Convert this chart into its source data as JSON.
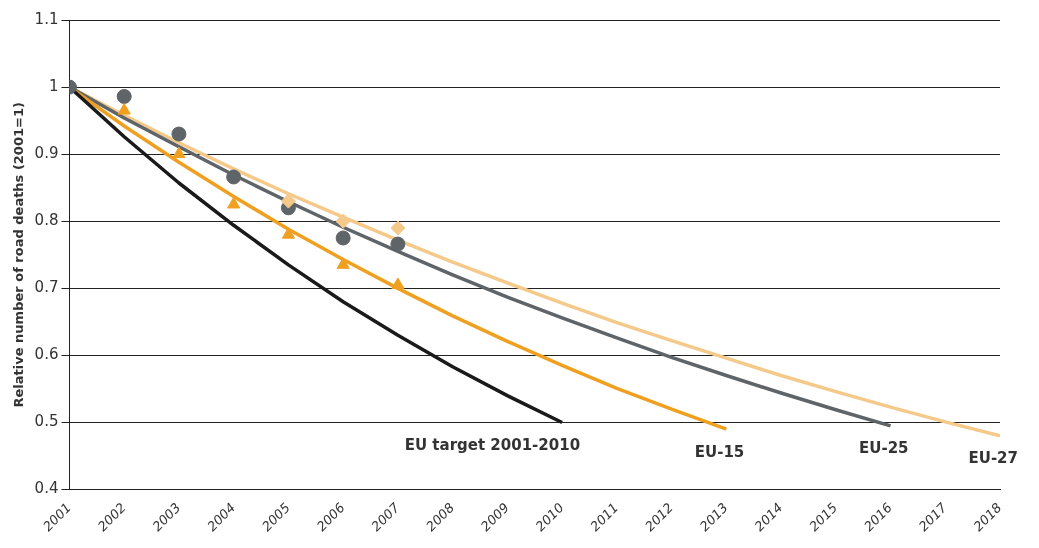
{
  "chart_data": {
    "type": "line",
    "ylabel": "Relative number of road deaths (2001=1)",
    "xlim": [
      2001,
      2018
    ],
    "xticks": [
      2001,
      2002,
      2003,
      2004,
      2005,
      2006,
      2007,
      2008,
      2009,
      2010,
      2011,
      2012,
      2013,
      2014,
      2015,
      2016,
      2017,
      2018
    ],
    "ylim": [
      0.4,
      1.1
    ],
    "yticks": [
      0.4,
      0.5,
      0.6,
      0.7,
      0.8,
      0.9,
      1,
      1.1
    ],
    "grid": "y",
    "legend": false,
    "series": [
      {
        "name": "EU target 2001-2010",
        "color": "#1a1a1a",
        "x": [
          2001,
          2002,
          2003,
          2004,
          2005,
          2006,
          2007,
          2008,
          2009,
          2010
        ],
        "values": [
          1,
          0.926,
          0.857,
          0.794,
          0.735,
          0.68,
          0.63,
          0.583,
          0.54,
          0.5
        ]
      },
      {
        "name": "EU-15",
        "color": "#f0a020",
        "x": [
          2001,
          2002,
          2003,
          2004,
          2005,
          2006,
          2007,
          2008,
          2009,
          2010,
          2011,
          2012,
          2013
        ],
        "values": [
          1,
          0.942,
          0.888,
          0.837,
          0.788,
          0.743,
          0.7,
          0.659,
          0.621,
          0.585,
          0.551,
          0.52,
          0.49
        ]
      },
      {
        "name": "EU-25",
        "color": "#5f6468",
        "x": [
          2001,
          2002,
          2003,
          2004,
          2005,
          2006,
          2007,
          2008,
          2009,
          2010,
          2011,
          2012,
          2013,
          2014,
          2015,
          2016
        ],
        "values": [
          1,
          0.954,
          0.911,
          0.869,
          0.829,
          0.791,
          0.755,
          0.72,
          0.687,
          0.656,
          0.626,
          0.597,
          0.57,
          0.544,
          0.519,
          0.495
        ]
      },
      {
        "name": "EU-27",
        "color": "#f5c98a",
        "x": [
          2001,
          2002,
          2003,
          2004,
          2005,
          2006,
          2007,
          2008,
          2009,
          2010,
          2011,
          2012,
          2013,
          2014,
          2015,
          2016,
          2017,
          2018
        ],
        "values": [
          1,
          0.958,
          0.917,
          0.878,
          0.841,
          0.806,
          0.772,
          0.739,
          0.708,
          0.678,
          0.649,
          0.622,
          0.596,
          0.57,
          0.546,
          0.523,
          0.501,
          0.48
        ]
      },
      {
        "type": "scatter",
        "marker": "triangle",
        "color": "#f0a020",
        "x": [
          2002,
          2003,
          2004,
          2005,
          2006,
          2007
        ],
        "values": [
          0.965,
          0.9,
          0.825,
          0.78,
          0.735,
          0.705
        ]
      },
      {
        "type": "scatter",
        "marker": "diamond",
        "color": "#f5c98a",
        "x": [
          2005,
          2006,
          2007
        ],
        "values": [
          0.83,
          0.8,
          0.79
        ]
      },
      {
        "type": "scatter",
        "marker": "circle",
        "color": "#5f6468",
        "x": [
          2001,
          2002,
          2003,
          2004,
          2005,
          2006,
          2007
        ],
        "values": [
          1,
          0.986,
          0.93,
          0.866,
          0.82,
          0.775,
          0.766
        ]
      }
    ]
  }
}
